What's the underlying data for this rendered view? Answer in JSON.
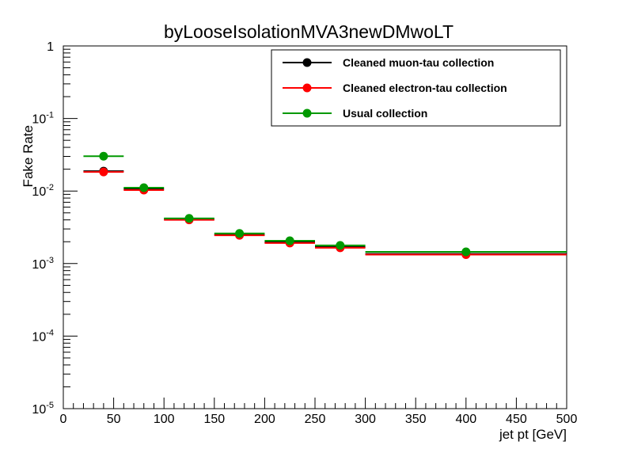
{
  "chart_data": {
    "type": "scatter",
    "title": "byLooseIsolationMVA3newDMwoLT",
    "xlabel": "jet pt [GeV]",
    "ylabel": "Fake Rate",
    "xlim": [
      0,
      500
    ],
    "ylim": [
      1e-05,
      1
    ],
    "yscale": "log",
    "grid": false,
    "legend_position": "top-right",
    "x_ticks": [
      "0",
      "50",
      "100",
      "150",
      "200",
      "250",
      "300",
      "350",
      "400",
      "450",
      "500"
    ],
    "y_ticks": [
      {
        "mantissa": "1",
        "exponent": ""
      },
      {
        "mantissa": "10",
        "exponent": "-1"
      },
      {
        "mantissa": "10",
        "exponent": "-2"
      },
      {
        "mantissa": "10",
        "exponent": "-3"
      },
      {
        "mantissa": "10",
        "exponent": "-4"
      },
      {
        "mantissa": "10",
        "exponent": "-5"
      }
    ],
    "bins": [
      [
        20,
        60
      ],
      [
        60,
        100
      ],
      [
        100,
        150
      ],
      [
        150,
        200
      ],
      [
        200,
        250
      ],
      [
        250,
        300
      ],
      [
        300,
        500
      ]
    ],
    "x": [
      40,
      80,
      125,
      175,
      225,
      275,
      400
    ],
    "series": [
      {
        "name": "Cleaned muon-tau collection",
        "color": "#000000",
        "values": [
          0.0188,
          0.0107,
          0.0041,
          0.0025,
          0.00196,
          0.00169,
          0.00136
        ]
      },
      {
        "name": "Cleaned electron-tau collection",
        "color": "#ff0000",
        "values": [
          0.0183,
          0.0103,
          0.004,
          0.00245,
          0.00192,
          0.00165,
          0.00133
        ]
      },
      {
        "name": "Usual collection",
        "color": "#009900",
        "values": [
          0.0302,
          0.0111,
          0.0042,
          0.0026,
          0.00206,
          0.00178,
          0.00145
        ]
      }
    ]
  }
}
